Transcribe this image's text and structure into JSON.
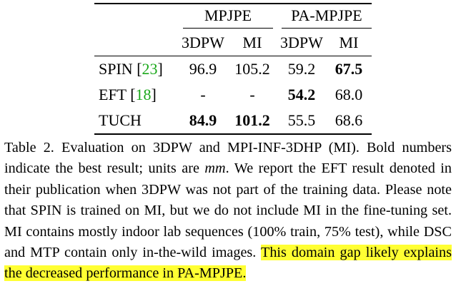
{
  "table": {
    "group_headers": [
      "MPJPE",
      "PA-MPJPE"
    ],
    "sub_headers": [
      "3DPW",
      "MI",
      "3DPW",
      "MI"
    ],
    "rows": [
      {
        "method": "SPIN",
        "cite": "23",
        "values": [
          "96.9",
          "105.2",
          "59.2",
          "67.5"
        ],
        "bold": [
          false,
          false,
          false,
          true
        ]
      },
      {
        "method": "EFT",
        "cite": "18",
        "values": [
          "-",
          "-",
          "54.2",
          "68.0"
        ],
        "bold": [
          false,
          false,
          true,
          false
        ]
      },
      {
        "method": "TUCH",
        "cite": "",
        "values": [
          "84.9",
          "101.2",
          "55.5",
          "68.6"
        ],
        "bold": [
          true,
          true,
          false,
          false
        ]
      }
    ]
  },
  "caption": {
    "label": "Table 2.",
    "text_part1": "Evaluation on 3DPW and MPI-INF-3DHP (MI). Bold numbers indicate the best result; units are",
    "units": "mm",
    "text_part2": ". We report the EFT result denoted in their publication when 3DPW was not part of the training data. Please note that SPIN is trained on MI, but we do not include MI in the fine-tuning set. MI contains mostly indoor lab sequences (100% train, 75% test), while DSC and MTP contain only in-the-wild images.",
    "highlighted": "This domain gap likely explains the decreased performance in PA-MPJPE.",
    "highlight_color": "#ffff33",
    "cite_color": "#1aa81a"
  }
}
